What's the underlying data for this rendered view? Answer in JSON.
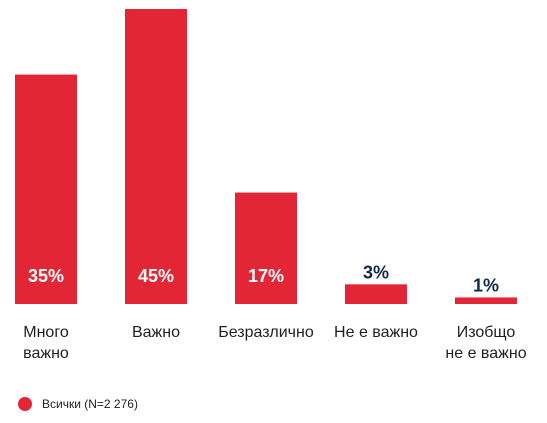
{
  "chart_data": {
    "type": "bar",
    "title": "",
    "xlabel": "",
    "ylabel": "",
    "ylim": [
      0,
      45
    ],
    "grid": false,
    "legend_position": "bottom-left",
    "categories": [
      [
        "Много",
        "важно"
      ],
      [
        "Важно"
      ],
      [
        "Безразлично"
      ],
      [
        "Не е важно"
      ],
      [
        "Изобщо",
        "не е важно"
      ]
    ],
    "series": [
      {
        "name": "Всички (N=2 276)",
        "values": [
          35,
          45,
          17,
          3,
          1
        ],
        "labels": [
          "35%",
          "45%",
          "17%",
          "3%",
          "1%"
        ],
        "color": "#e22636"
      }
    ],
    "label_colors": {
      "inside": "#ffffff",
      "outside": "#0f2a47"
    }
  }
}
